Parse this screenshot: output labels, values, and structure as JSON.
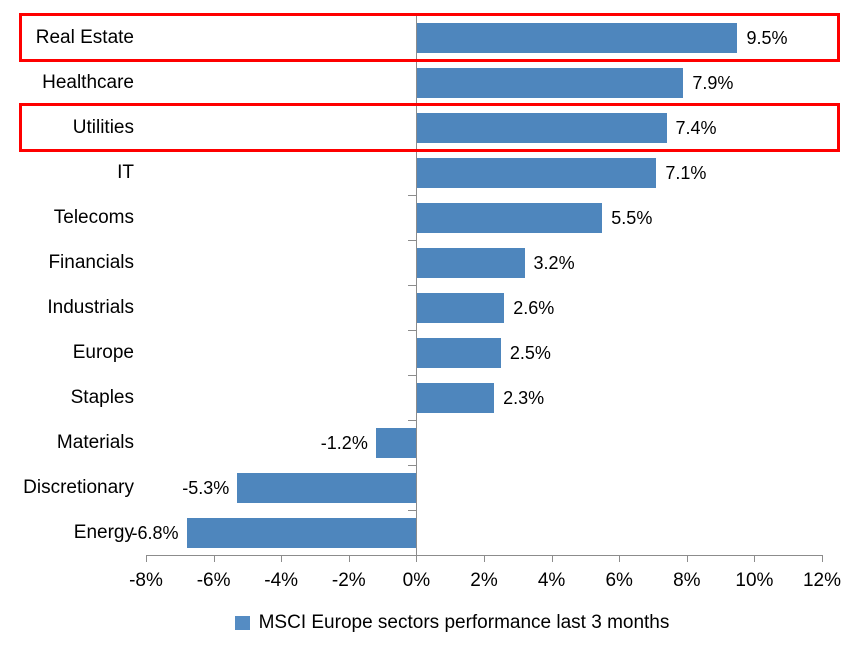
{
  "chart_data": {
    "type": "bar",
    "orientation": "horizontal",
    "title": "",
    "xlabel": "",
    "ylabel": "",
    "categories": [
      "Real Estate",
      "Healthcare",
      "Utilities",
      "IT",
      "Telecoms",
      "Financials",
      "Industrials",
      "Europe",
      "Staples",
      "Materials",
      "Discretionary",
      "Energy"
    ],
    "values": [
      9.5,
      7.9,
      7.4,
      7.1,
      5.5,
      3.2,
      2.6,
      2.5,
      2.3,
      -1.2,
      -5.3,
      -6.8
    ],
    "value_labels": [
      "9.5%",
      "7.9%",
      "7.4%",
      "7.1%",
      "5.5%",
      "3.2%",
      "2.6%",
      "2.5%",
      "2.3%",
      "-1.2%",
      "-5.3%",
      "-6.8%"
    ],
    "x_tick_labels": [
      "-8%",
      "-6%",
      "-4%",
      "-2%",
      "0%",
      "2%",
      "4%",
      "6%",
      "8%",
      "10%",
      "12%"
    ],
    "x_tick_values": [
      -8,
      -6,
      -4,
      -2,
      0,
      2,
      4,
      6,
      8,
      10,
      12
    ],
    "xlim": [
      -8,
      12
    ],
    "grid": false,
    "legend": "MSCI Europe sectors performance last 3 months",
    "legend_position": "bottom",
    "bar_color": "#4e86bd",
    "legend_swatch_color": "#558cc3",
    "axis_color": "#8c8c8c",
    "highlight_color": "#fe0000",
    "highlighted_categories": [
      "Real Estate",
      "Utilities"
    ]
  }
}
